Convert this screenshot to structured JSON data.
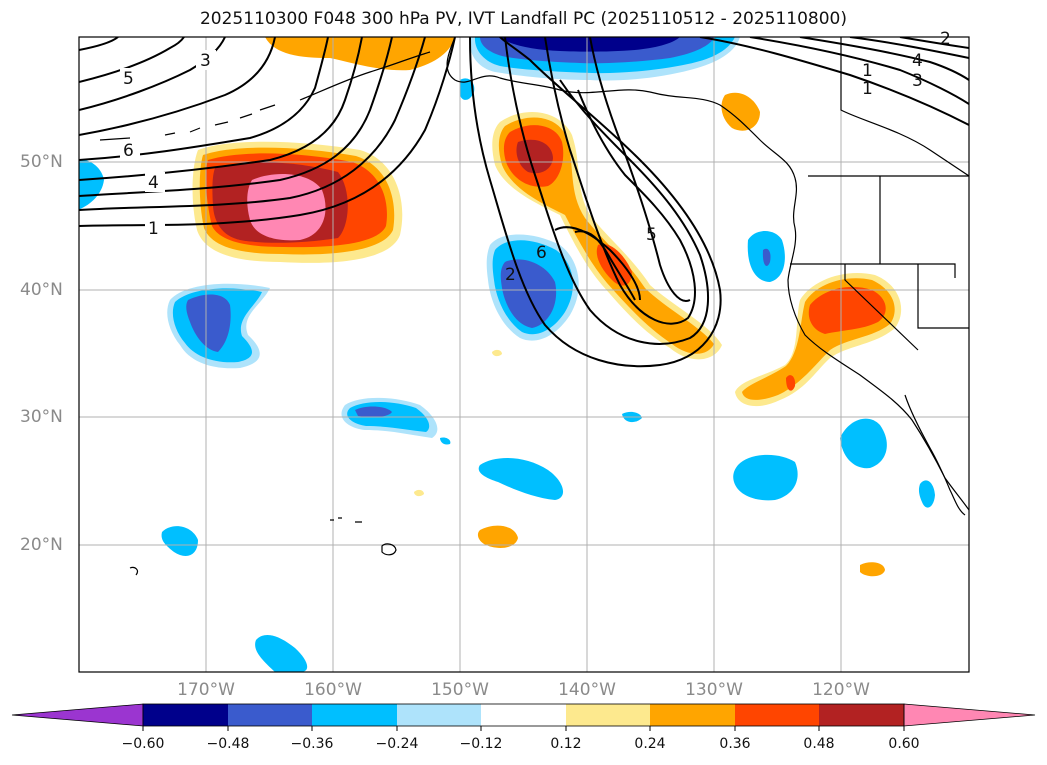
{
  "title": "2025110300 F048 300 hPa PV, IVT Landfall PC (2025110512 - 2025110800)",
  "lat_labels": [
    "50°N",
    "40°N",
    "30°N",
    "20°N"
  ],
  "lon_labels": [
    "170°W",
    "160°W",
    "150°W",
    "140°W",
    "130°W",
    "120°W"
  ],
  "colorbar": {
    "ticks": [
      "−0.60",
      "−0.48",
      "−0.36",
      "−0.24",
      "−0.12",
      "0.12",
      "0.24",
      "0.36",
      "0.48",
      "0.60"
    ],
    "colors": [
      "#9b35d0",
      "#00008b",
      "#3a5bcd",
      "#00bfff",
      "#aee3fb",
      "#ffffff",
      "#fde98e",
      "#ffa500",
      "#ff4500",
      "#b22222",
      "#ff87b3"
    ]
  },
  "contour_labels": [
    "3",
    "5",
    "6",
    "4",
    "1",
    "2",
    "6",
    "5",
    "2",
    "4",
    "3",
    "1",
    "1"
  ],
  "colors": {
    "frame": "#000000",
    "grid": "#b0b0b0",
    "axis_text": "#8a8a8a"
  }
}
